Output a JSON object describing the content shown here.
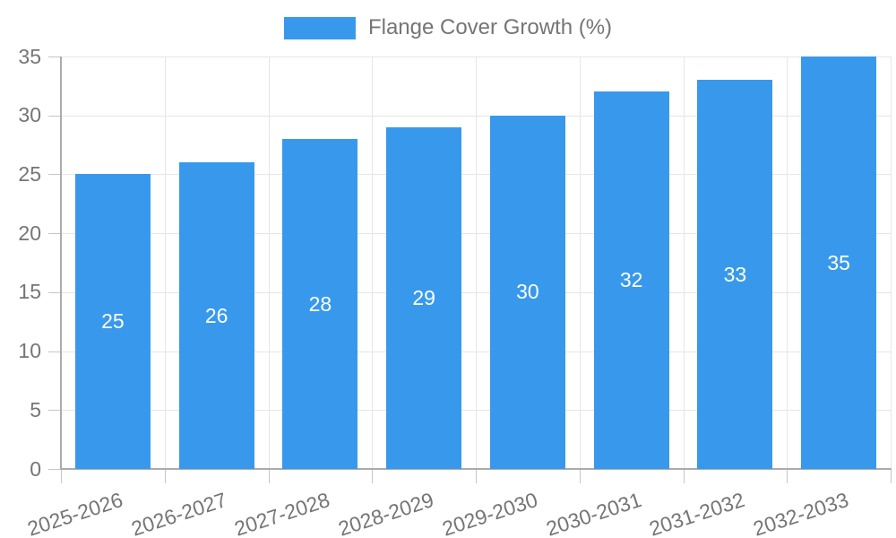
{
  "colors": {
    "background": "#ffffff",
    "bar": "#3899ec",
    "axis_text": "#757575",
    "grid": "#e6e6e6",
    "tick": "#c6c6c6",
    "axis_border": "#ababab",
    "value_label": "#ffffff"
  },
  "chart_data": {
    "type": "bar",
    "title": "",
    "series_name": "Flange Cover Growth (%)",
    "legend_position": "top",
    "categories": [
      "2025-2026",
      "2026-2027",
      "2027-2028",
      "2028-2029",
      "2029-2030",
      "2030-2031",
      "2031-2032",
      "2032-2033"
    ],
    "values": [
      25,
      26,
      28,
      29,
      30,
      32,
      33,
      35
    ],
    "value_labels": [
      "25",
      "26",
      "28",
      "29",
      "30",
      "32",
      "33",
      "35"
    ],
    "xlabel": "",
    "ylabel": "",
    "ylim": [
      0,
      35
    ],
    "ytick_step": 5,
    "yticks": [
      0,
      5,
      10,
      15,
      20,
      25,
      30,
      35
    ],
    "grid": true,
    "value_label_position": "inside-center"
  }
}
